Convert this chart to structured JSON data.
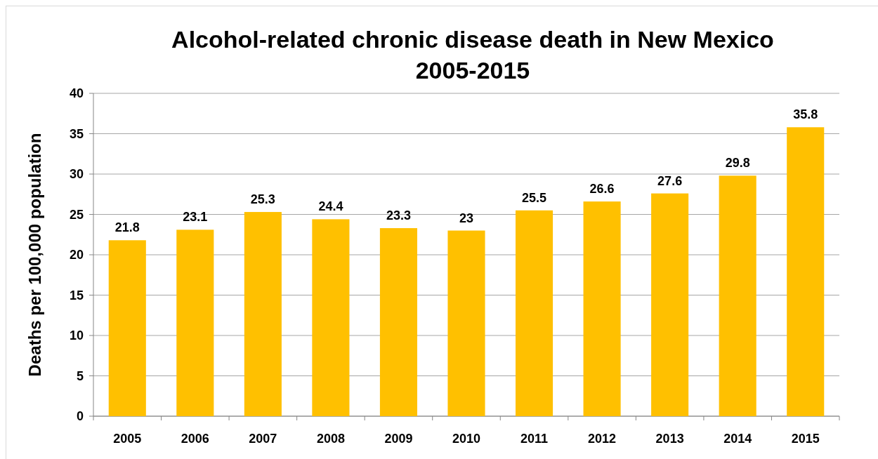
{
  "chart_data": {
    "type": "bar",
    "title": "Alcohol-related chronic disease death in New Mexico 2005-2015",
    "ylabel": "Deaths per 100,000 population",
    "categories": [
      "2005",
      "2006",
      "2007",
      "2008",
      "2009",
      "2010",
      "2011",
      "2012",
      "2013",
      "2014",
      "2015"
    ],
    "values": [
      21.8,
      23.1,
      25.3,
      24.4,
      23.3,
      23,
      25.5,
      26.6,
      27.6,
      29.8,
      35.8
    ],
    "color": "#ffc000",
    "ylim": [
      0,
      40
    ],
    "yticks": [
      0,
      5,
      10,
      15,
      20,
      25,
      30,
      35,
      40
    ],
    "grid": "y",
    "data_labels": true
  }
}
